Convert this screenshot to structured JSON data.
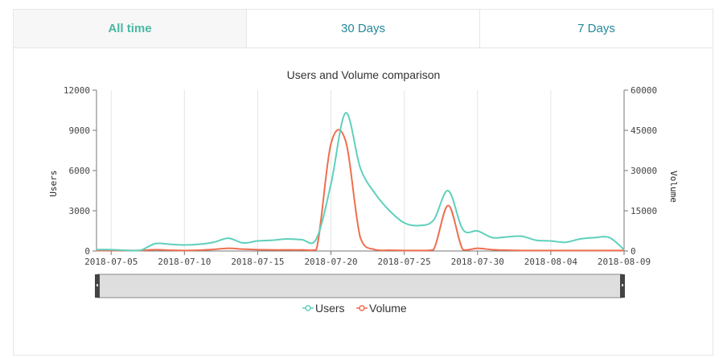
{
  "tabs": [
    {
      "label": "All time",
      "active": true
    },
    {
      "label": "30 Days",
      "active": false
    },
    {
      "label": "7 Days",
      "active": false
    }
  ],
  "colors": {
    "users": "#5fd0bb",
    "volume": "#ef6e50",
    "tab_active": "#48b8a3",
    "tab": "#23889a"
  },
  "chart_data": {
    "type": "line",
    "title": "Users and Volume comparison",
    "xlabel": "",
    "ylabel_left": "Users",
    "ylabel_right": "Volume",
    "ylim_left": [
      0,
      12000
    ],
    "ylim_right": [
      0,
      60000
    ],
    "yticks_left": [
      "0",
      "3000",
      "6000",
      "9000",
      "12000"
    ],
    "yticks_right": [
      "0",
      "15000",
      "30000",
      "45000",
      "60000"
    ],
    "xticks": [
      "2018-07-05",
      "2018-07-10",
      "2018-07-15",
      "2018-07-20",
      "2018-07-25",
      "2018-07-30",
      "2018-08-04",
      "2018-08-09"
    ],
    "grid": "vertical",
    "legend": "bottom",
    "x": [
      "2018-07-04",
      "2018-07-05",
      "2018-07-06",
      "2018-07-07",
      "2018-07-08",
      "2018-07-09",
      "2018-07-10",
      "2018-07-11",
      "2018-07-12",
      "2018-07-13",
      "2018-07-14",
      "2018-07-15",
      "2018-07-16",
      "2018-07-17",
      "2018-07-18",
      "2018-07-19",
      "2018-07-20",
      "2018-07-21",
      "2018-07-22",
      "2018-07-23",
      "2018-07-24",
      "2018-07-25",
      "2018-07-26",
      "2018-07-27",
      "2018-07-28",
      "2018-07-29",
      "2018-07-30",
      "2018-07-31",
      "2018-08-01",
      "2018-08-02",
      "2018-08-03",
      "2018-08-04",
      "2018-08-05",
      "2018-08-06",
      "2018-08-07",
      "2018-08-08",
      "2018-08-09"
    ],
    "series": [
      {
        "name": "Users",
        "axis": "left",
        "values": [
          100,
          100,
          50,
          50,
          550,
          500,
          450,
          500,
          650,
          950,
          600,
          750,
          800,
          900,
          850,
          900,
          5000,
          10300,
          6200,
          4300,
          3000,
          2100,
          1900,
          2300,
          4500,
          1600,
          1500,
          1000,
          1050,
          1100,
          800,
          750,
          650,
          900,
          1000,
          1000,
          100
        ]
      },
      {
        "name": "Volume",
        "axis": "right",
        "values": [
          200,
          200,
          200,
          200,
          500,
          300,
          200,
          300,
          600,
          1000,
          700,
          500,
          400,
          400,
          400,
          500,
          40000,
          41000,
          5000,
          500,
          300,
          200,
          200,
          500,
          17000,
          500,
          1000,
          500,
          300,
          200,
          200,
          200,
          200,
          200,
          200,
          200,
          200
        ]
      }
    ]
  }
}
